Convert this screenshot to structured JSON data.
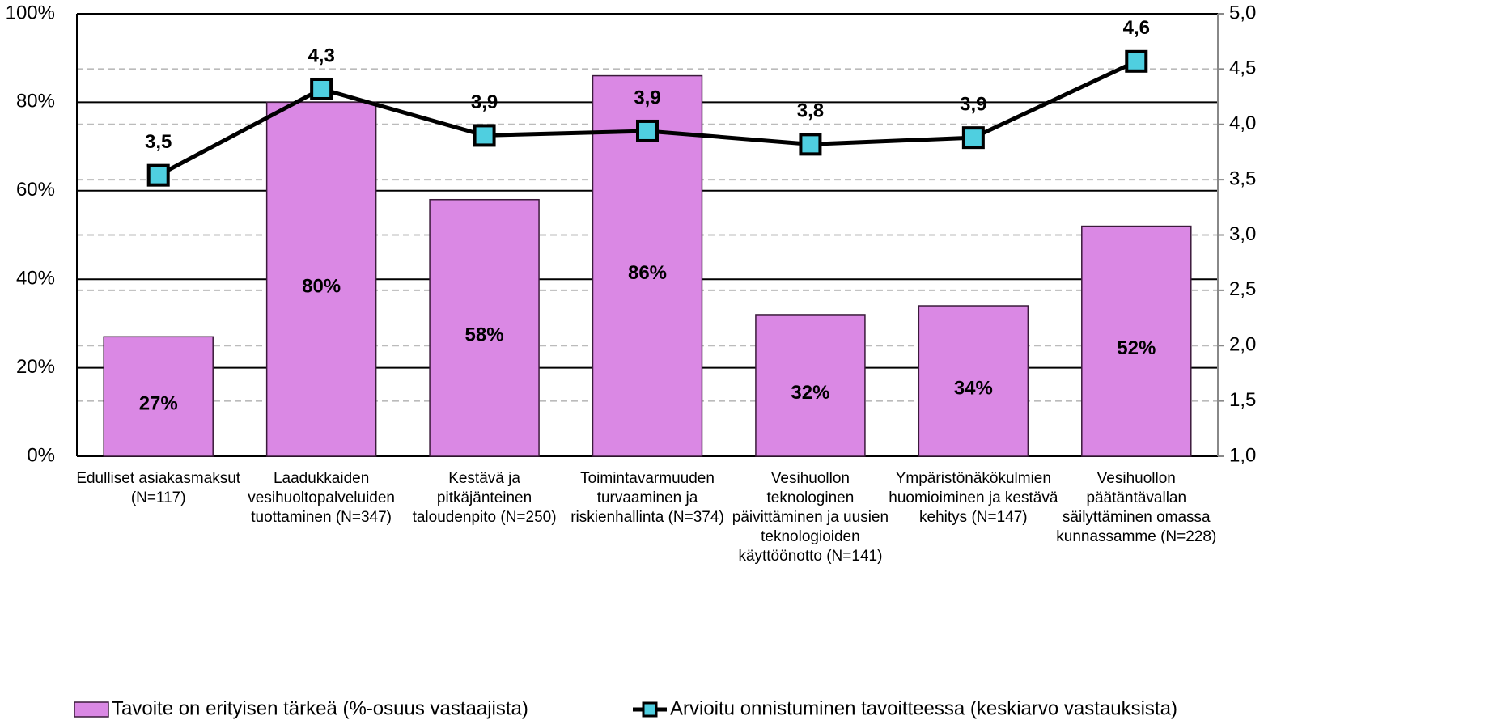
{
  "chart_data": {
    "type": "combo",
    "categories": [
      "Edulliset asiakasmaksut (N=117)",
      "Laadukkaiden vesihuoltopalveluiden tuottaminen (N=347)",
      "Kestävä ja pitkäjänteinen taloudenpito (N=250)",
      "Toimintavarmuuden turvaaminen ja riskienhallinta (N=374)",
      "Vesihuollon teknologinen päivittäminen ja uusien teknologioiden käyttöönotto (N=141)",
      "Ympäristönäkökulmien huomioiminen ja kestävä kehitys (N=147)",
      "Vesihuollon päätäntävallan säilyttäminen omassa kunnassamme (N=228)"
    ],
    "series": [
      {
        "name": "Tavoite on erityisen tärkeä (%-osuus vastaajista)",
        "type": "bar",
        "color": "#da88e4",
        "values": [
          27,
          80,
          58,
          86,
          32,
          34,
          52
        ],
        "value_labels": [
          "27%",
          "80%",
          "58%",
          "86%",
          "32%",
          "34%",
          "52%"
        ]
      },
      {
        "name": "Arvioitu onnistuminen tavoitteessa (keskiarvo vastauksista)",
        "type": "line",
        "axis": "y2",
        "color": "#4fcfe0",
        "values": [
          3.54,
          4.32,
          3.9,
          3.94,
          3.82,
          3.88,
          4.57
        ],
        "value_labels": [
          "3,5",
          "4,3",
          "3,9",
          "3,9",
          "3,8",
          "3,9",
          "4,6"
        ]
      }
    ],
    "ylim": [
      0,
      100
    ],
    "yticks": [
      {
        "value": 0,
        "label": "0%"
      },
      {
        "value": 20,
        "label": "20%"
      },
      {
        "value": 40,
        "label": "40%"
      },
      {
        "value": 60,
        "label": "60%"
      },
      {
        "value": 80,
        "label": "80%"
      },
      {
        "value": 100,
        "label": "100%"
      }
    ],
    "y2lim": [
      1,
      5
    ],
    "y2ticks": [
      {
        "value": 1,
        "label": "1,0"
      },
      {
        "value": 1.5,
        "label": "1,5"
      },
      {
        "value": 2,
        "label": "2,0"
      },
      {
        "value": 2.5,
        "label": "2,5"
      },
      {
        "value": 3,
        "label": "3,0"
      },
      {
        "value": 3.5,
        "label": "3,5"
      },
      {
        "value": 4,
        "label": "4,0"
      },
      {
        "value": 4.5,
        "label": "4,5"
      },
      {
        "value": 5,
        "label": "5,0"
      }
    ],
    "grid": true,
    "legend": "bottom"
  }
}
